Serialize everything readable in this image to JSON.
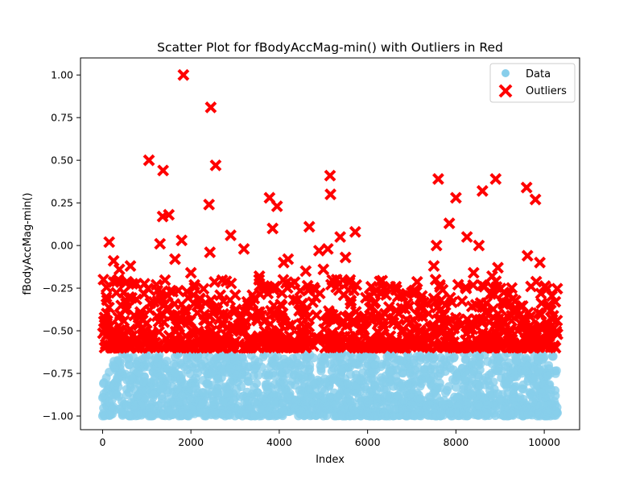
{
  "chart_data": {
    "type": "scatter",
    "title": "Scatter Plot for fBodyAccMag-min() with Outliers in Red",
    "xlabel": "Index",
    "ylabel": "fBodyAccMag-min()",
    "xlim": [
      -500,
      10800
    ],
    "ylim": [
      -1.08,
      1.1
    ],
    "xticks": [
      0,
      2000,
      4000,
      6000,
      8000,
      10000
    ],
    "xtick_labels": [
      "0",
      "2000",
      "4000",
      "6000",
      "8000",
      "10000"
    ],
    "yticks": [
      -1.0,
      -0.75,
      -0.5,
      -0.25,
      0.0,
      0.25,
      0.5,
      0.75,
      1.0
    ],
    "ytick_labels": [
      "−1.00",
      "−0.75",
      "−0.50",
      "−0.25",
      "0.00",
      "0.25",
      "0.50",
      "0.75",
      "1.00"
    ],
    "grid": false,
    "legend": {
      "position": "top-right",
      "entries": [
        "Data",
        "Outliers"
      ]
    },
    "colors": {
      "data": "#87CEEB",
      "outliers": "#FF0000"
    },
    "series": [
      {
        "name": "Data",
        "marker": "circle",
        "color": "#87CEEB",
        "x_range": [
          0,
          10299
        ],
        "y_range": [
          -1.0,
          -0.63
        ],
        "points": [
          [
            0,
            -1.0
          ],
          [
            150,
            -0.92
          ],
          [
            300,
            -0.8
          ],
          [
            450,
            -0.99
          ],
          [
            600,
            -0.7
          ],
          [
            750,
            -0.95
          ],
          [
            900,
            -0.85
          ],
          [
            1050,
            -1.0
          ],
          [
            1200,
            -0.66
          ],
          [
            1350,
            -0.9
          ],
          [
            1500,
            -0.97
          ],
          [
            1650,
            -0.75
          ],
          [
            1800,
            -0.88
          ],
          [
            1950,
            -1.0
          ],
          [
            2100,
            -0.69
          ],
          [
            2250,
            -0.93
          ],
          [
            2400,
            -0.82
          ],
          [
            2550,
            -0.98
          ],
          [
            2700,
            -0.72
          ],
          [
            2850,
            -0.87
          ],
          [
            3000,
            -1.0
          ],
          [
            3150,
            -0.78
          ],
          [
            3300,
            -0.91
          ],
          [
            3450,
            -0.67
          ],
          [
            3600,
            -0.96
          ],
          [
            3750,
            -0.84
          ],
          [
            3900,
            -1.0
          ],
          [
            4050,
            -0.7
          ],
          [
            4200,
            -0.89
          ],
          [
            4350,
            -0.95
          ],
          [
            4500,
            -0.76
          ],
          [
            4650,
            -0.99
          ],
          [
            4800,
            -0.81
          ],
          [
            4950,
            -0.68
          ],
          [
            5100,
            -0.94
          ],
          [
            5250,
            -1.0
          ],
          [
            5400,
            -0.73
          ],
          [
            5550,
            -0.86
          ],
          [
            5700,
            -0.97
          ],
          [
            5850,
            -0.79
          ],
          [
            6000,
            -0.92
          ],
          [
            6150,
            -1.0
          ],
          [
            6300,
            -0.71
          ],
          [
            6450,
            -0.88
          ],
          [
            6600,
            -0.96
          ],
          [
            6750,
            -0.83
          ],
          [
            6900,
            -1.0
          ],
          [
            7050,
            -0.69
          ],
          [
            7200,
            -0.9
          ],
          [
            7350,
            -0.94
          ],
          [
            7500,
            -0.77
          ],
          [
            7650,
            -0.99
          ],
          [
            7800,
            -0.85
          ],
          [
            7950,
            -0.66
          ],
          [
            8100,
            -0.93
          ],
          [
            8250,
            -1.0
          ],
          [
            8400,
            -0.74
          ],
          [
            8550,
            -0.87
          ],
          [
            8700,
            -0.98
          ],
          [
            8850,
            -0.8
          ],
          [
            9000,
            -0.91
          ],
          [
            9150,
            -1.0
          ],
          [
            9300,
            -0.72
          ],
          [
            9450,
            -0.89
          ],
          [
            9600,
            -0.95
          ],
          [
            9750,
            -0.78
          ],
          [
            9900,
            -1.0
          ],
          [
            10050,
            -0.84
          ],
          [
            10200,
            -0.65
          ],
          [
            10290,
            -0.95
          ]
        ]
      },
      {
        "name": "Outliers",
        "marker": "x",
        "color": "#FF0000",
        "points": [
          [
            20,
            -0.2
          ],
          [
            100,
            -0.32
          ],
          [
            150,
            0.02
          ],
          [
            250,
            -0.09
          ],
          [
            320,
            -0.21
          ],
          [
            380,
            -0.14
          ],
          [
            520,
            -0.22
          ],
          [
            630,
            -0.12
          ],
          [
            1050,
            0.5
          ],
          [
            1220,
            -0.23
          ],
          [
            1300,
            0.01
          ],
          [
            1370,
            0.44
          ],
          [
            1360,
            0.17
          ],
          [
            1500,
            0.18
          ],
          [
            1640,
            -0.08
          ],
          [
            1790,
            0.03
          ],
          [
            1830,
            1.0
          ],
          [
            2000,
            -0.16
          ],
          [
            2200,
            -0.31
          ],
          [
            2410,
            0.24
          ],
          [
            2430,
            -0.04
          ],
          [
            2450,
            0.81
          ],
          [
            2560,
            0.47
          ],
          [
            2600,
            -0.38
          ],
          [
            2800,
            -0.21
          ],
          [
            2900,
            0.06
          ],
          [
            3200,
            -0.02
          ],
          [
            3400,
            -0.34
          ],
          [
            3550,
            -0.18
          ],
          [
            3780,
            0.28
          ],
          [
            3850,
            0.1
          ],
          [
            3900,
            -0.24
          ],
          [
            3950,
            0.23
          ],
          [
            4100,
            -0.1
          ],
          [
            4200,
            -0.08
          ],
          [
            4400,
            -0.32
          ],
          [
            4600,
            -0.15
          ],
          [
            4680,
            0.11
          ],
          [
            4900,
            -0.03
          ],
          [
            5000,
            -0.14
          ],
          [
            5100,
            -0.02
          ],
          [
            5150,
            0.41
          ],
          [
            5160,
            0.3
          ],
          [
            5300,
            -0.2
          ],
          [
            5380,
            0.05
          ],
          [
            5500,
            -0.07
          ],
          [
            5640,
            -0.45
          ],
          [
            5720,
            0.08
          ],
          [
            5900,
            -0.53
          ],
          [
            6100,
            -0.44
          ],
          [
            6420,
            -0.29
          ],
          [
            6650,
            -0.38
          ],
          [
            6900,
            -0.34
          ],
          [
            7200,
            -0.35
          ],
          [
            7500,
            -0.12
          ],
          [
            7560,
            0.0
          ],
          [
            7600,
            0.39
          ],
          [
            7700,
            -0.26
          ],
          [
            7850,
            0.13
          ],
          [
            8000,
            0.28
          ],
          [
            8050,
            -0.23
          ],
          [
            8250,
            0.05
          ],
          [
            8400,
            -0.16
          ],
          [
            8520,
            0.0
          ],
          [
            8600,
            0.32
          ],
          [
            8820,
            -0.18
          ],
          [
            8900,
            0.39
          ],
          [
            8950,
            -0.13
          ],
          [
            9100,
            -0.34
          ],
          [
            9400,
            -0.5
          ],
          [
            9600,
            0.34
          ],
          [
            9620,
            -0.06
          ],
          [
            9700,
            -0.24
          ],
          [
            9800,
            0.27
          ],
          [
            9900,
            -0.1
          ],
          [
            10050,
            -0.45
          ],
          [
            10150,
            -0.38
          ],
          [
            10250,
            -0.33
          ],
          [
            10290,
            -0.44
          ],
          [
            10300,
            -0.52
          ]
        ]
      }
    ]
  }
}
